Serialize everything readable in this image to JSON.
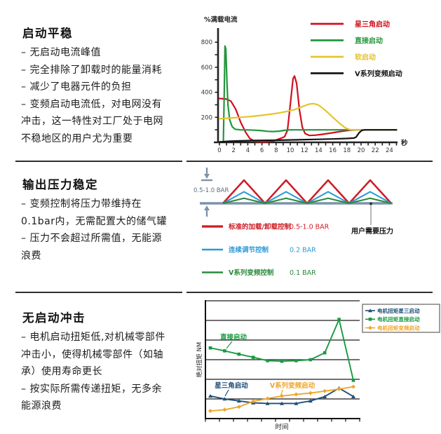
{
  "sections": [
    {
      "title": "启动平稳",
      "lines": [
        "– 无启动电流峰值",
        "– 完全排除了卸载时的能量消耗",
        "– 减少了电器元件的负担",
        "– 变频启动电流低，对电网没有",
        "冲击，这一特性对工厂处于电网",
        "不稳地区的用户尤为重要"
      ]
    },
    {
      "title": "输出压力稳定",
      "lines": [
        "– 变频控制将压力带维持在",
        "0.1bar内，无需配置大的储气罐",
        "– 压力不会超过所需值，无能源",
        "浪费"
      ]
    },
    {
      "title": "无启动冲击",
      "lines": [
        "– 电机启动扭矩低,对机械零部件",
        "冲击小，使得机械零部件（如轴",
        "承）使用寿命更长",
        "– 按实际所需传递扭矩，无多余",
        "能源浪费"
      ]
    }
  ],
  "chart_data": [
    {
      "type": "line",
      "title": "",
      "ylabel": "%满载电流",
      "xlabel": "秒",
      "x_ticks": [
        0,
        2,
        4,
        6,
        8,
        10,
        12,
        14,
        16,
        18,
        20,
        22,
        24
      ],
      "y_ticks": [
        200,
        400,
        600,
        800
      ],
      "xlim": [
        0,
        25.2
      ],
      "ylim": [
        0,
        900
      ],
      "grid": false,
      "legend_position": "top-right",
      "series": [
        {
          "id": "star-delta",
          "name": "星三角启动",
          "color": "#d1101e",
          "points": [
            [
              0,
              350
            ],
            [
              0.9,
              347
            ],
            [
              1.6,
              330
            ],
            [
              2.3,
              265
            ],
            [
              3,
              160
            ],
            [
              3.7,
              80
            ],
            [
              4.3,
              30
            ],
            [
              5,
              8
            ],
            [
              6,
              4
            ],
            [
              7,
              6
            ],
            [
              7.8,
              15
            ],
            [
              8.6,
              30
            ],
            [
              9.2,
              45
            ],
            [
              9.6,
              95
            ],
            [
              10,
              300
            ],
            [
              10.4,
              510
            ],
            [
              10.6,
              530
            ],
            [
              10.9,
              470
            ],
            [
              11.3,
              260
            ],
            [
              11.7,
              120
            ],
            [
              12.1,
              70
            ],
            [
              12.7,
              55
            ],
            [
              13.5,
              57
            ],
            [
              14.5,
              64
            ],
            [
              15.5,
              72
            ],
            [
              16.5,
              81
            ],
            [
              17.5,
              90
            ],
            [
              18.5,
              97
            ],
            [
              19.5,
              100
            ],
            [
              25,
              100
            ]
          ]
        },
        {
          "id": "direct-start",
          "name": "直接启动",
          "color": "#23963c",
          "points": [
            [
              0.55,
              15
            ],
            [
              0.68,
              420
            ],
            [
              0.78,
              770
            ],
            [
              0.9,
              745
            ],
            [
              1.05,
              500
            ],
            [
              1.2,
              300
            ],
            [
              1.45,
              180
            ],
            [
              1.8,
              125
            ],
            [
              2.2,
              105
            ],
            [
              3,
              100
            ],
            [
              4,
              99
            ],
            [
              5,
              97
            ],
            [
              6,
              93
            ],
            [
              6.8,
              88
            ],
            [
              7.6,
              86
            ],
            [
              8.4,
              89
            ],
            [
              9.2,
              96
            ],
            [
              10,
              100
            ],
            [
              25,
              100
            ]
          ]
        },
        {
          "id": "soft-start",
          "name": "软启动",
          "color": "#e5c42f",
          "points": [
            [
              0,
              188
            ],
            [
              1.5,
              194
            ],
            [
              3,
              200
            ],
            [
              4.5,
              207
            ],
            [
              6,
              216
            ],
            [
              7.5,
              227
            ],
            [
              8.5,
              236
            ],
            [
              9.5,
              247
            ],
            [
              10.5,
              260
            ],
            [
              11.3,
              276
            ],
            [
              12,
              292
            ],
            [
              12.7,
              306
            ],
            [
              13.3,
              309
            ],
            [
              13.9,
              300
            ],
            [
              14.6,
              272
            ],
            [
              15.4,
              233
            ],
            [
              16.2,
              190
            ],
            [
              17,
              150
            ],
            [
              17.8,
              115
            ],
            [
              18.4,
              102
            ],
            [
              19,
              100
            ],
            [
              25,
              100
            ]
          ]
        },
        {
          "id": "v-series-vfd",
          "name": "V系列变频启动",
          "color": "#141414",
          "points": [
            [
              0,
              4
            ],
            [
              1.5,
              9
            ],
            [
              3,
              12
            ],
            [
              5,
              15
            ],
            [
              8,
              17
            ],
            [
              11,
              20
            ],
            [
              14,
              24
            ],
            [
              16,
              27
            ],
            [
              18,
              31
            ],
            [
              19,
              34
            ],
            [
              19.3,
              42
            ],
            [
              19.7,
              75
            ],
            [
              20.1,
              95
            ],
            [
              20.5,
              100
            ],
            [
              25,
              100
            ]
          ]
        }
      ]
    },
    {
      "type": "diagram",
      "subtype": "pressure-band-schematic",
      "band_label": "0.5-1.0 BAR",
      "demand_label": "用户需要压力",
      "peaks": 4,
      "baseline_color": "#7d93aa",
      "series": [
        {
          "id": "load-unload",
          "name": "标准的加载/卸载控制",
          "band": "0.5-1.0 BAR",
          "color": "#cf1b24",
          "rel_height": 1.0
        },
        {
          "id": "continuous-regulation",
          "name": "连续调节控制",
          "band": "0.2 BAR",
          "color": "#2d9ad3",
          "rel_height": 0.5
        },
        {
          "id": "v-series-vfd-control",
          "name": "V系列变频控制",
          "band": "0.1 BAR",
          "color": "#2c8a3d",
          "rel_height": 0.22
        }
      ]
    },
    {
      "type": "line",
      "title": "",
      "xlabel": "时间",
      "ylabel": "绝对扭矩 NM",
      "x": [
        1,
        2,
        3,
        4,
        5,
        6,
        7,
        8,
        9,
        10,
        11
      ],
      "ylim": [
        0,
        6
      ],
      "grid": true,
      "legend_position": "top-right",
      "series": [
        {
          "id": "torque-star-delta",
          "name": "电机扭矩星三启动",
          "annotation": "星三角启动",
          "color": "#1f4e79",
          "marker": "triangle",
          "values": [
            1.15,
            1.0,
            0.9,
            0.8,
            0.77,
            0.77,
            0.77,
            0.9,
            1.12,
            1.55,
            1.12
          ]
        },
        {
          "id": "torque-direct",
          "name": "电机扭矩直接启动",
          "annotation": "直接启动",
          "color": "#1a9a43",
          "marker": "square",
          "values": [
            3.6,
            3.45,
            3.28,
            3.12,
            2.95,
            2.92,
            2.95,
            3.0,
            3.35,
            5.05,
            1.95
          ]
        },
        {
          "id": "torque-vfd",
          "name": "电机扭矩变频启动",
          "annotation": "V系列变频启动",
          "color": "#f0a62c",
          "marker": "diamond",
          "values": [
            0.39,
            0.45,
            0.6,
            0.88,
            1.02,
            1.15,
            1.23,
            1.3,
            1.4,
            1.5,
            1.62
          ]
        }
      ]
    }
  ]
}
